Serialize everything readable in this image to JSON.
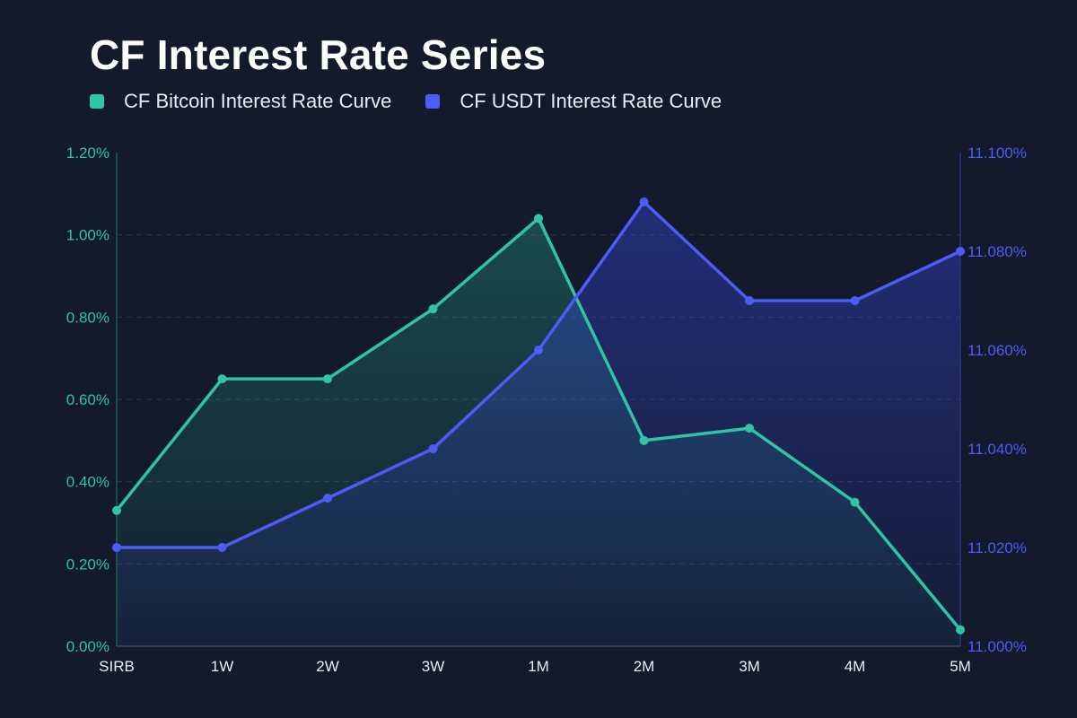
{
  "chart_data": {
    "type": "line",
    "title": "CF Interest Rate Series",
    "categories": [
      "SIRB",
      "1W",
      "2W",
      "3W",
      "1M",
      "2M",
      "3M",
      "4M",
      "5M"
    ],
    "series": [
      {
        "name": "CF Bitcoin Interest Rate Curve",
        "axis": "left",
        "color": "#2ec4a4",
        "values": [
          0.33,
          0.65,
          0.65,
          0.82,
          1.04,
          0.5,
          0.53,
          0.35,
          0.04
        ]
      },
      {
        "name": "CF USDT Interest Rate Curve",
        "axis": "right",
        "color": "#4c5cf5",
        "values": [
          11.02,
          11.02,
          11.03,
          11.04,
          11.06,
          11.09,
          11.07,
          11.07,
          11.08
        ]
      }
    ],
    "y_left": {
      "range": [
        0,
        1.2
      ],
      "ticks": [
        "0.00%",
        "0.20%",
        "0.40%",
        "0.60%",
        "0.80%",
        "1.00%",
        "1.20%"
      ],
      "color": "#2ec4a4"
    },
    "y_right": {
      "range": [
        11.0,
        11.1
      ],
      "ticks": [
        "11.000%",
        "11.020%",
        "11.040%",
        "11.060%",
        "11.080%",
        "11.100%"
      ],
      "color": "#4c5cf5"
    },
    "grid": true,
    "legend_position": "top-left"
  }
}
